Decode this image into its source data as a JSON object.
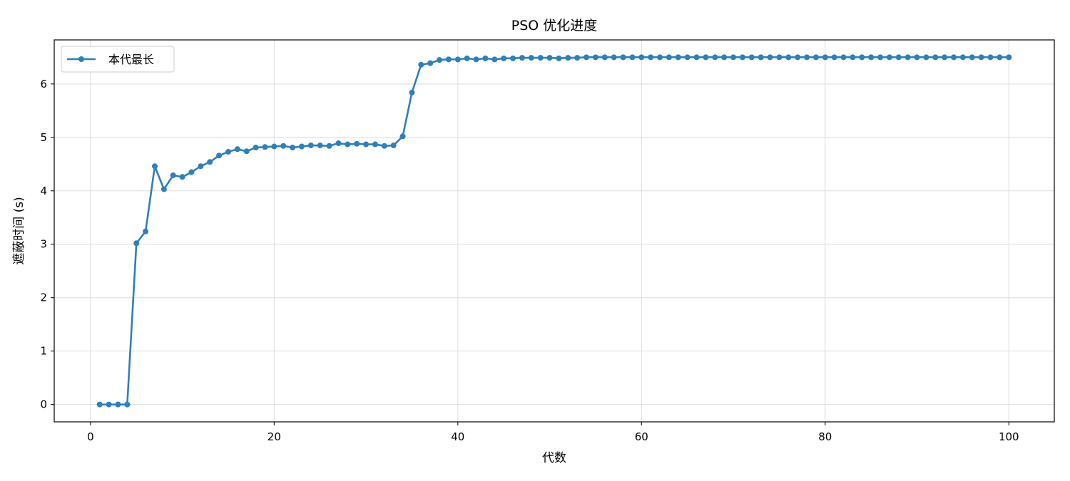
{
  "chart_data": {
    "type": "line",
    "title": "PSO 优化进度",
    "xlabel": "代数",
    "ylabel": "遮蔽时间 (s)",
    "xlim": [
      -3.95,
      104.95
    ],
    "ylim": [
      -0.325,
      6.825
    ],
    "xticks": [
      0,
      20,
      40,
      60,
      80,
      100
    ],
    "yticks": [
      0,
      1,
      2,
      3,
      4,
      5,
      6
    ],
    "grid": true,
    "legend_position": "top-left",
    "series": [
      {
        "name": "本代最长",
        "color": "#2f7fb9",
        "marker": "circle",
        "x": [
          1,
          2,
          3,
          4,
          5,
          6,
          7,
          8,
          9,
          10,
          11,
          12,
          13,
          14,
          15,
          16,
          17,
          18,
          19,
          20,
          21,
          22,
          23,
          24,
          25,
          26,
          27,
          28,
          29,
          30,
          31,
          32,
          33,
          34,
          35,
          36,
          37,
          38,
          39,
          40,
          41,
          42,
          43,
          44,
          45,
          46,
          47,
          48,
          49,
          50,
          51,
          52,
          53,
          54,
          55,
          56,
          57,
          58,
          59,
          60,
          61,
          62,
          63,
          64,
          65,
          66,
          67,
          68,
          69,
          70,
          71,
          72,
          73,
          74,
          75,
          76,
          77,
          78,
          79,
          80,
          81,
          82,
          83,
          84,
          85,
          86,
          87,
          88,
          89,
          90,
          91,
          92,
          93,
          94,
          95,
          96,
          97,
          98,
          99,
          100
        ],
        "values": [
          0,
          0,
          0,
          0,
          3.02,
          3.24,
          4.46,
          4.03,
          4.29,
          4.26,
          4.35,
          4.46,
          4.54,
          4.66,
          4.73,
          4.78,
          4.74,
          4.81,
          4.82,
          4.83,
          4.84,
          4.81,
          4.83,
          4.85,
          4.85,
          4.84,
          4.89,
          4.87,
          4.88,
          4.87,
          4.87,
          4.84,
          4.85,
          5.02,
          5.84,
          6.36,
          6.39,
          6.45,
          6.46,
          6.46,
          6.48,
          6.46,
          6.48,
          6.46,
          6.48,
          6.48,
          6.49,
          6.49,
          6.49,
          6.49,
          6.48,
          6.49,
          6.49,
          6.5,
          6.5,
          6.5,
          6.5,
          6.5,
          6.5,
          6.5,
          6.5,
          6.5,
          6.5,
          6.5,
          6.5,
          6.5,
          6.5,
          6.5,
          6.5,
          6.5,
          6.5,
          6.5,
          6.5,
          6.5,
          6.5,
          6.5,
          6.5,
          6.5,
          6.5,
          6.5,
          6.5,
          6.5,
          6.5,
          6.5,
          6.5,
          6.5,
          6.5,
          6.5,
          6.5,
          6.5,
          6.5,
          6.5,
          6.5,
          6.5,
          6.5,
          6.5,
          6.5,
          6.5,
          6.5,
          6.5
        ]
      }
    ]
  }
}
